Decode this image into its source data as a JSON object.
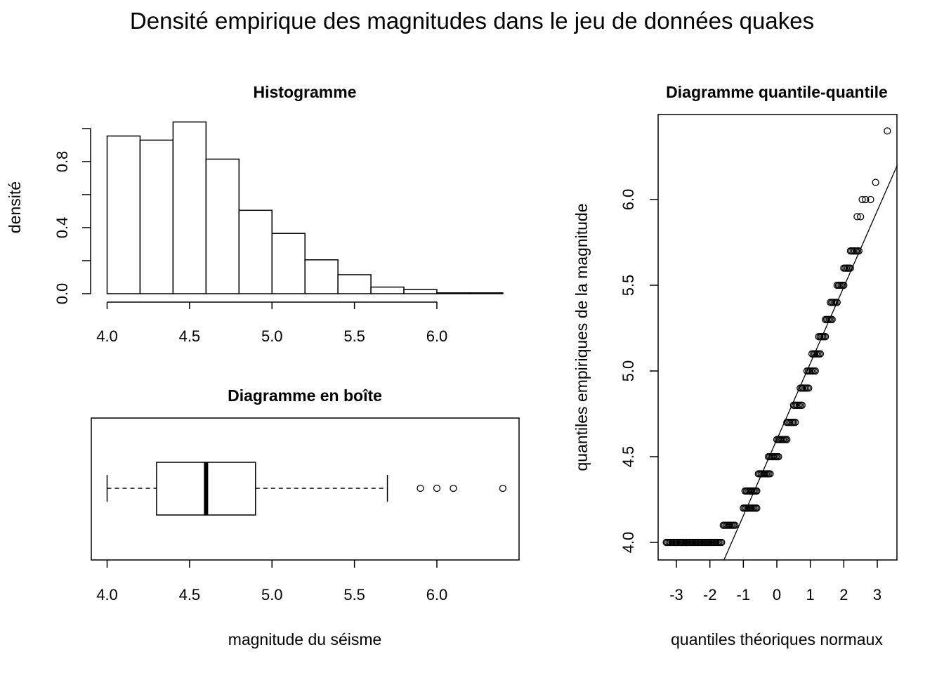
{
  "figure": {
    "title": "Densité empirique des magnitudes dans le jeu de données quakes"
  },
  "chart_data": [
    {
      "type": "bar",
      "subtype": "histogram",
      "title": "Histogramme",
      "xlabel": "",
      "ylabel": "densité",
      "bin_edges": [
        4.0,
        4.2,
        4.4,
        4.6,
        4.8,
        5.0,
        5.2,
        5.4,
        5.6,
        5.8,
        6.0,
        6.2,
        6.4
      ],
      "values": [
        0.955,
        0.93,
        1.04,
        0.815,
        0.505,
        0.365,
        0.205,
        0.115,
        0.04,
        0.025,
        0.005,
        0.005
      ],
      "xlim": [
        4.0,
        6.4
      ],
      "ylim": [
        0,
        1.04
      ],
      "xticks": [
        4.0,
        4.5,
        5.0,
        5.5,
        6.0
      ],
      "xtick_labels": [
        "4.0",
        "4.5",
        "5.0",
        "5.5",
        "6.0"
      ],
      "yticks": [
        0.0,
        0.4,
        0.8
      ],
      "ytick_labels": [
        "0.0",
        "0.4",
        "0.8"
      ]
    },
    {
      "type": "boxplot",
      "title": "Diagramme en boîte",
      "xlabel": "magnitude du séisme",
      "whisker_low": 4.0,
      "q1": 4.3,
      "median": 4.6,
      "q3": 4.9,
      "whisker_high": 5.7,
      "outliers": [
        5.9,
        6.0,
        6.1,
        6.4
      ],
      "xlim": [
        3.9,
        6.45
      ],
      "xticks": [
        4.0,
        4.5,
        5.0,
        5.5,
        6.0
      ],
      "xtick_labels": [
        "4.0",
        "4.5",
        "5.0",
        "5.5",
        "6.0"
      ]
    },
    {
      "type": "scatter",
      "subtype": "qq-plot",
      "title": "Diagramme quantile-quantile",
      "xlabel": "quantiles théoriques normaux",
      "ylabel": "quantiles empiriques de la magnitude",
      "xlim": [
        -3.6,
        3.6
      ],
      "ylim": [
        3.9,
        6.5
      ],
      "xticks": [
        -3,
        -2,
        -1,
        0,
        1,
        2,
        3
      ],
      "xtick_labels": [
        "-3",
        "-2",
        "-1",
        "0",
        "1",
        "2",
        "3"
      ],
      "yticks": [
        4.0,
        4.5,
        5.0,
        5.5,
        6.0
      ],
      "ytick_labels": [
        "4.0",
        "4.5",
        "5.0",
        "5.5",
        "6.0"
      ],
      "groups": [
        {
          "y": 4.0,
          "x_from": -3.3,
          "x_to": -1.65
        },
        {
          "y": 4.1,
          "x_from": -1.6,
          "x_to": -1.25
        },
        {
          "y": 4.2,
          "x_from": -1.0,
          "x_to": -0.6
        },
        {
          "y": 4.3,
          "x_from": -0.95,
          "x_to": -0.6
        },
        {
          "y": 4.4,
          "x_from": -0.55,
          "x_to": -0.2
        },
        {
          "y": 4.5,
          "x_from": -0.25,
          "x_to": 0.05
        },
        {
          "y": 4.6,
          "x_from": 0.0,
          "x_to": 0.3
        },
        {
          "y": 4.7,
          "x_from": 0.3,
          "x_to": 0.55
        },
        {
          "y": 4.8,
          "x_from": 0.5,
          "x_to": 0.75
        },
        {
          "y": 4.9,
          "x_from": 0.7,
          "x_to": 0.95
        },
        {
          "y": 5.0,
          "x_from": 0.9,
          "x_to": 1.15
        },
        {
          "y": 5.1,
          "x_from": 1.05,
          "x_to": 1.3
        },
        {
          "y": 5.2,
          "x_from": 1.25,
          "x_to": 1.45
        },
        {
          "y": 5.3,
          "x_from": 1.45,
          "x_to": 1.65
        },
        {
          "y": 5.4,
          "x_from": 1.6,
          "x_to": 1.8
        },
        {
          "y": 5.5,
          "x_from": 1.8,
          "x_to": 2.0
        },
        {
          "y": 5.6,
          "x_from": 2.0,
          "x_to": 2.2
        },
        {
          "y": 5.7,
          "x_from": 2.2,
          "x_to": 2.45
        }
      ],
      "points": [
        {
          "x": -3.3,
          "y": 4.0
        },
        {
          "x": -3.0,
          "y": 4.0
        },
        {
          "x": -2.85,
          "y": 4.0
        },
        {
          "x": -2.7,
          "y": 4.0
        },
        {
          "x": 2.4,
          "y": 5.9
        },
        {
          "x": 2.5,
          "y": 5.9
        },
        {
          "x": 2.55,
          "y": 6.0
        },
        {
          "x": 2.65,
          "y": 6.0
        },
        {
          "x": 2.8,
          "y": 6.0
        },
        {
          "x": 2.95,
          "y": 6.1
        },
        {
          "x": 3.3,
          "y": 6.4
        }
      ],
      "reference_line": {
        "intercept": 4.6,
        "slope": 0.4448
      }
    }
  ]
}
